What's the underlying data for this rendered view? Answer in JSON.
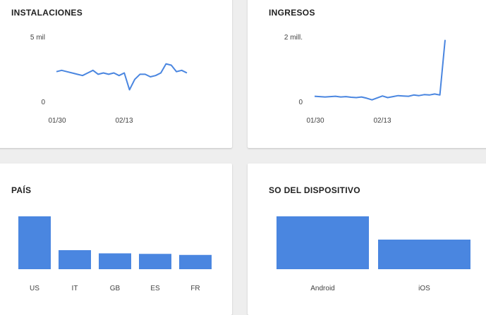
{
  "cards": {
    "installs": {
      "title": "INSTALACIONES"
    },
    "revenue": {
      "title": "INGRESOS"
    },
    "country": {
      "title": "PAÍS"
    },
    "os": {
      "title": "SO DEL DISPOSITIVO"
    }
  },
  "colors": {
    "series": "#4a86e0",
    "card_bg": "#ffffff",
    "page_bg": "#eeeeee"
  },
  "chart_data": [
    {
      "type": "line",
      "title": "INSTALACIONES",
      "y_tick_labels": [
        "5 mil",
        "0"
      ],
      "x_tick_labels": [
        "01/30",
        "02/13"
      ],
      "ylim": [
        0,
        5000
      ],
      "x": [
        1,
        2,
        3,
        4,
        5,
        6,
        7,
        8,
        9,
        10,
        11,
        12,
        13,
        14,
        15,
        16,
        17,
        18,
        19,
        20,
        21,
        22,
        23,
        24,
        25,
        26
      ],
      "values": [
        2300,
        2400,
        2300,
        2200,
        2100,
        2000,
        2200,
        2400,
        2100,
        2200,
        2100,
        2200,
        2000,
        2200,
        900,
        1700,
        2100,
        2100,
        1900,
        2000,
        2200,
        2900,
        2800,
        2300,
        2400,
        2200
      ]
    },
    {
      "type": "line",
      "title": "INGRESOS",
      "y_tick_labels": [
        "2 mill.",
        "0"
      ],
      "x_tick_labels": [
        "01/30",
        "02/13"
      ],
      "ylim": [
        0,
        2000000
      ],
      "x": [
        1,
        2,
        3,
        4,
        5,
        6,
        7,
        8,
        9,
        10,
        11,
        12,
        13,
        14,
        15,
        16,
        17,
        18,
        19,
        20,
        21,
        22,
        23,
        24,
        25,
        26
      ],
      "values": [
        160000,
        150000,
        140000,
        150000,
        160000,
        140000,
        150000,
        130000,
        120000,
        140000,
        100000,
        50000,
        110000,
        170000,
        120000,
        150000,
        180000,
        170000,
        160000,
        200000,
        180000,
        210000,
        200000,
        230000,
        200000,
        1900000
      ]
    },
    {
      "type": "bar",
      "title": "PAÍS",
      "categories": [
        "US",
        "IT",
        "GB",
        "ES",
        "FR"
      ],
      "values": [
        100,
        36,
        30,
        29,
        27
      ]
    },
    {
      "type": "bar",
      "title": "SO DEL DISPOSITIVO",
      "categories": [
        "Android",
        "iOS"
      ],
      "values": [
        100,
        56
      ]
    }
  ]
}
